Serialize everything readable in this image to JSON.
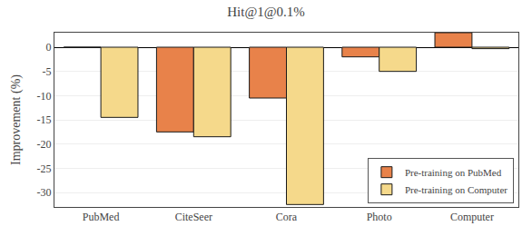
{
  "chart_data": {
    "type": "bar",
    "title": "Hit@1@0.1%",
    "ylabel": "Improvement (%)",
    "categories": [
      "PubMed",
      "CiteSeer",
      "Cora",
      "Photo",
      "Computer"
    ],
    "series": [
      {
        "name": "Pre-training on PubMed",
        "color": "#E8824A",
        "values": [
          0.0,
          -17.5,
          -10.5,
          -2.0,
          3.0
        ]
      },
      {
        "name": "Pre-training on Computer",
        "color": "#F5D98B",
        "values": [
          -14.5,
          -18.5,
          -32.5,
          -5.0,
          -0.3
        ]
      }
    ],
    "ylim": [
      -33,
      3
    ],
    "yticks": [
      0,
      -5,
      -10,
      -15,
      -20,
      -25,
      -30
    ],
    "grid": true,
    "legend": "lower right"
  }
}
